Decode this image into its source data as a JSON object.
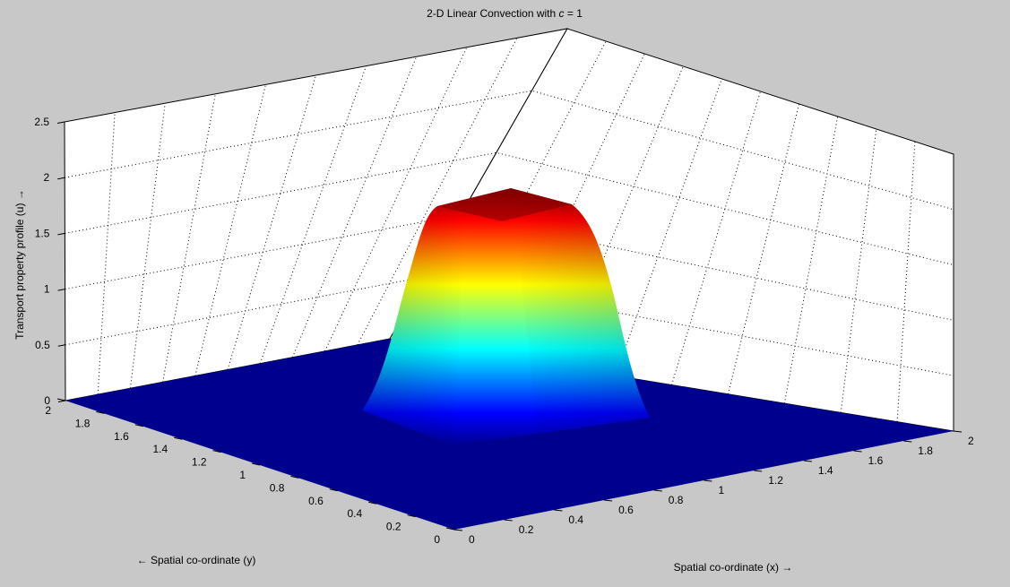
{
  "chart_data": {
    "type": "surface",
    "title_prefix": "2-D Linear Convection with ",
    "title_var": "c",
    "title_suffix": " = 1",
    "xlabel": "Spatial co-ordinate (x) →",
    "ylabel": "← Spatial co-ordinate (y)",
    "zlabel": "Transport property profile (u) →",
    "xlim": [
      0,
      2
    ],
    "ylim": [
      0,
      2
    ],
    "zlim": [
      0,
      2.5
    ],
    "x_ticks": [
      "0",
      "0.2",
      "0.4",
      "0.6",
      "0.8",
      "1",
      "1.2",
      "1.4",
      "1.6",
      "1.8",
      "2"
    ],
    "y_ticks": [
      "0",
      "0.2",
      "0.4",
      "0.6",
      "0.8",
      "1",
      "1.2",
      "1.4",
      "1.6",
      "1.8",
      "2"
    ],
    "z_ticks": [
      "0",
      "0.5",
      "1",
      "1.5",
      "2",
      "2.5"
    ],
    "grid": true,
    "colormap": "jet",
    "floor_color": "#00008f",
    "peak_value": 2.0,
    "base_value": 0.0,
    "plateau_x": [
      0.5,
      1.0
    ],
    "plateau_y": [
      0.5,
      1.0
    ]
  }
}
